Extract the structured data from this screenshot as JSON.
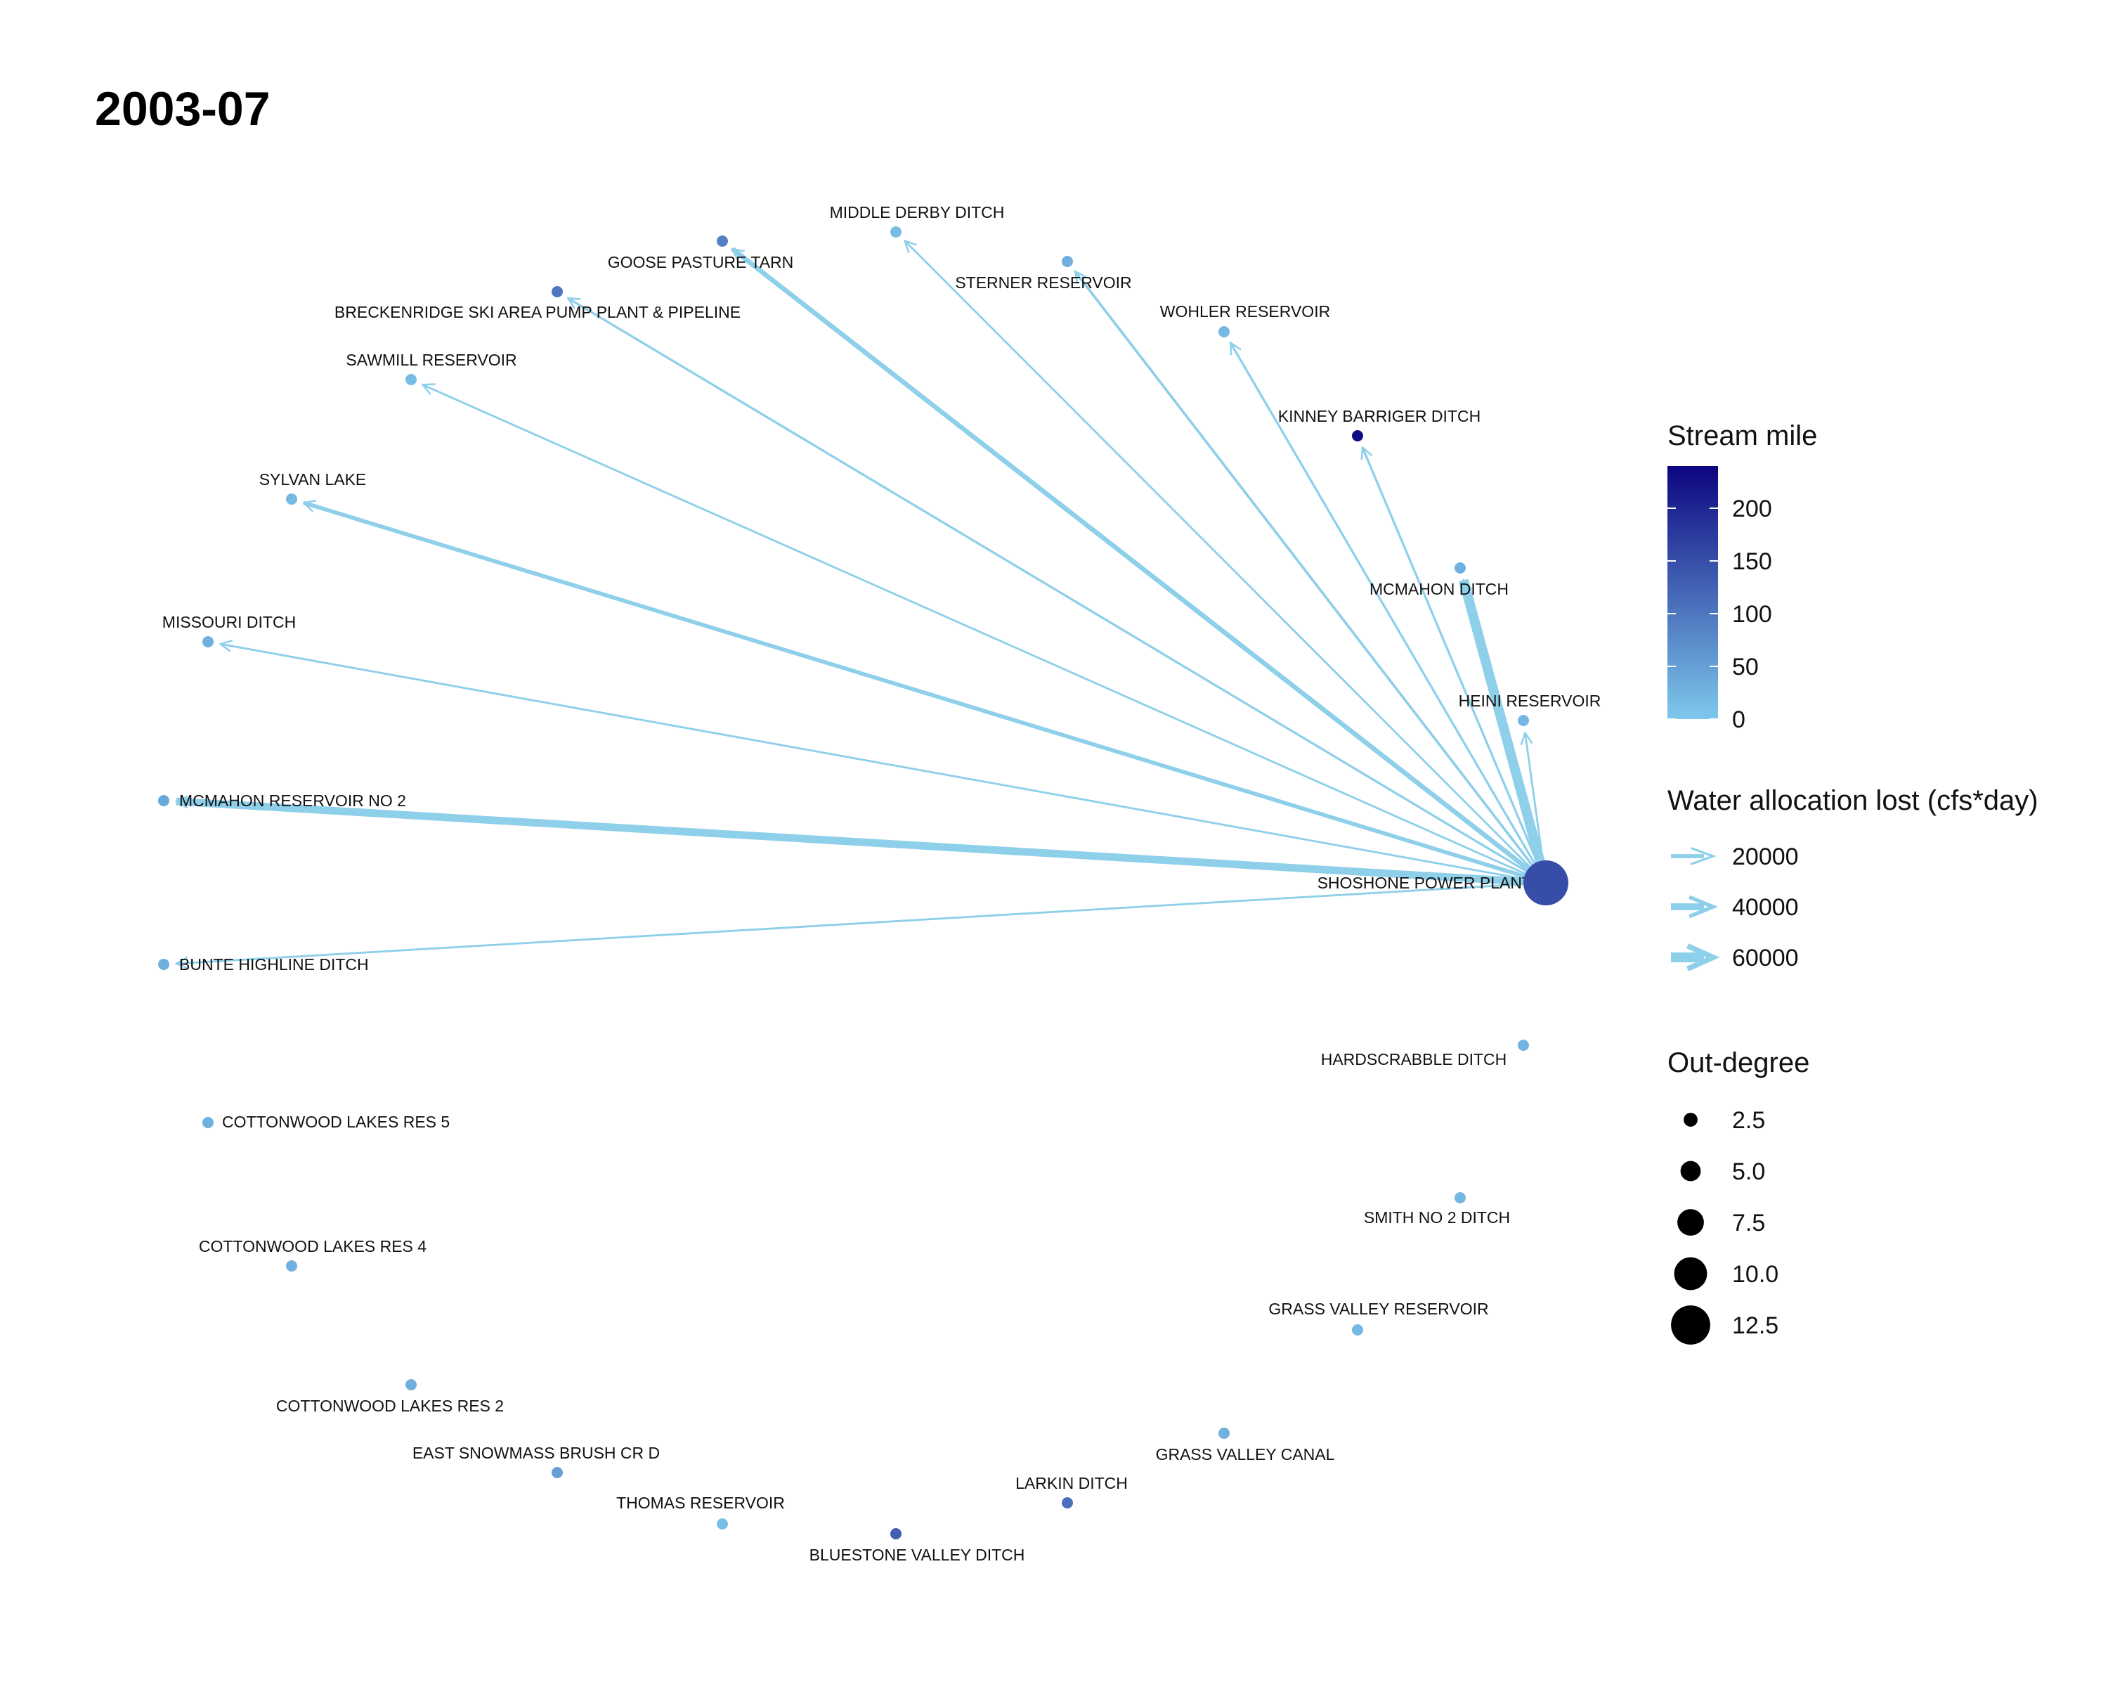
{
  "title": "2003-07",
  "center_node": {
    "id": "shoshone",
    "name": "SHOSHONE POWER PLANT",
    "stream_mile": 150,
    "out_degree": 13
  },
  "nodes": [
    {
      "id": "middle_derby",
      "name": "MIDDLE DERBY DITCH",
      "stream_mile": 15,
      "out_degree": 1
    },
    {
      "id": "goose_pasture",
      "name": "GOOSE PASTURE TARN",
      "stream_mile": 90,
      "out_degree": 1
    },
    {
      "id": "sterner",
      "name": "STERNER RESERVOIR",
      "stream_mile": 30,
      "out_degree": 1
    },
    {
      "id": "breckenridge",
      "name": "BRECKENRIDGE SKI AREA PUMP PLANT & PIPELINE",
      "stream_mile": 100,
      "out_degree": 1
    },
    {
      "id": "wohler",
      "name": "WOHLER RESERVOIR",
      "stream_mile": 20,
      "out_degree": 1
    },
    {
      "id": "sawmill",
      "name": "SAWMILL RESERVOIR",
      "stream_mile": 15,
      "out_degree": 1
    },
    {
      "id": "kinney_barriger",
      "name": "KINNEY BARRIGER DITCH",
      "stream_mile": 230,
      "out_degree": 1
    },
    {
      "id": "sylvan",
      "name": "SYLVAN LAKE",
      "stream_mile": 20,
      "out_degree": 1
    },
    {
      "id": "mcmahon_ditch",
      "name": "MCMAHON DITCH",
      "stream_mile": 30,
      "out_degree": 1
    },
    {
      "id": "missouri",
      "name": "MISSOURI DITCH",
      "stream_mile": 30,
      "out_degree": 1
    },
    {
      "id": "heini",
      "name": "HEINI RESERVOIR",
      "stream_mile": 20,
      "out_degree": 1
    },
    {
      "id": "mcmahon_res2",
      "name": "MCMAHON RESERVOIR NO 2",
      "stream_mile": 40,
      "out_degree": 1
    },
    {
      "id": "bunte",
      "name": "BUNTE HIGHLINE DITCH",
      "stream_mile": 30,
      "out_degree": 1
    },
    {
      "id": "hardscrabble",
      "name": "HARDSCRABBLE DITCH",
      "stream_mile": 25,
      "out_degree": 1
    },
    {
      "id": "cottonwood5",
      "name": "COTTONWOOD LAKES RES 5",
      "stream_mile": 30,
      "out_degree": 1
    },
    {
      "id": "smith2",
      "name": "SMITH NO 2 DITCH",
      "stream_mile": 20,
      "out_degree": 1
    },
    {
      "id": "cottonwood4",
      "name": "COTTONWOOD LAKES RES 4",
      "stream_mile": 30,
      "out_degree": 1
    },
    {
      "id": "grass_valley_res",
      "name": "GRASS VALLEY RESERVOIR",
      "stream_mile": 20,
      "out_degree": 1
    },
    {
      "id": "cottonwood2",
      "name": "COTTONWOOD LAKES RES 2",
      "stream_mile": 30,
      "out_degree": 1
    },
    {
      "id": "east_snowmass",
      "name": "EAST SNOWMASS BRUSH CR D",
      "stream_mile": 50,
      "out_degree": 1
    },
    {
      "id": "grass_valley_canal",
      "name": "GRASS VALLEY CANAL",
      "stream_mile": 30,
      "out_degree": 1
    },
    {
      "id": "thomas",
      "name": "THOMAS RESERVOIR",
      "stream_mile": 10,
      "out_degree": 1
    },
    {
      "id": "larkin",
      "name": "LARKIN DITCH",
      "stream_mile": 110,
      "out_degree": 1
    },
    {
      "id": "bluestone",
      "name": "BLUESTONE VALLEY DITCH",
      "stream_mile": 130,
      "out_degree": 1
    }
  ],
  "edges": [
    {
      "from": "shoshone",
      "to": "middle_derby",
      "water_lost": 6000
    },
    {
      "from": "shoshone",
      "to": "goose_pasture",
      "water_lost": 25000
    },
    {
      "from": "shoshone",
      "to": "sterner",
      "water_lost": 10000
    },
    {
      "from": "shoshone",
      "to": "breckenridge",
      "water_lost": 8000
    },
    {
      "from": "shoshone",
      "to": "wohler",
      "water_lost": 8000
    },
    {
      "from": "shoshone",
      "to": "sawmill",
      "water_lost": 6000
    },
    {
      "from": "shoshone",
      "to": "kinney_barriger",
      "water_lost": 8000
    },
    {
      "from": "shoshone",
      "to": "sylvan",
      "water_lost": 20000
    },
    {
      "from": "shoshone",
      "to": "mcmahon_ditch",
      "water_lost": 60000
    },
    {
      "from": "shoshone",
      "to": "missouri",
      "water_lost": 6000
    },
    {
      "from": "shoshone",
      "to": "heini",
      "water_lost": 6000
    },
    {
      "from": "shoshone",
      "to": "mcmahon_res2",
      "water_lost": 45000
    },
    {
      "from": "shoshone",
      "to": "bunte",
      "water_lost": 6000
    }
  ],
  "legend": {
    "color": {
      "title": "Stream mile",
      "ticks": [
        0,
        50,
        100,
        150,
        200
      ],
      "min": 0,
      "max": 240,
      "color_low": "#7ec8ec",
      "color_high": "#0c0580"
    },
    "edge_width": {
      "title": "Water allocation lost (cfs*day)",
      "ticks": [
        20000,
        40000,
        60000
      ],
      "color": "#8ecfea"
    },
    "size": {
      "title": "Out-degree",
      "ticks": [
        "2.5",
        "5.0",
        "7.5",
        "10.0",
        "12.5"
      ]
    }
  }
}
